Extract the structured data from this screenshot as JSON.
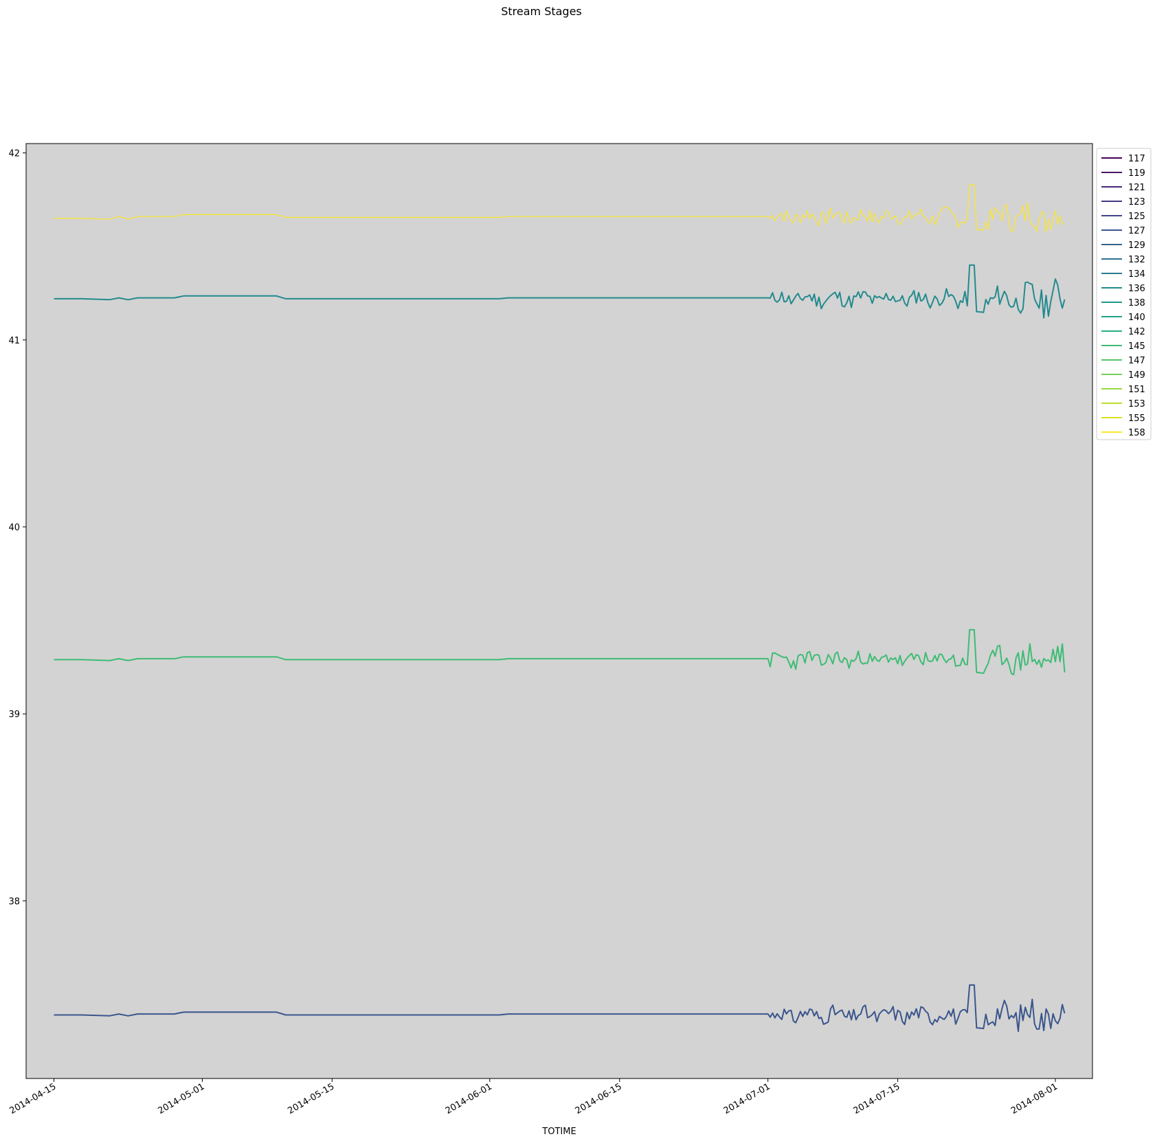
{
  "chart_data": {
    "type": "line",
    "title": "Stream Stages",
    "xlabel": "TOTIME",
    "ylabel": "",
    "x_type": "date",
    "xlim": [
      "2014-04-12",
      "2014-08-05"
    ],
    "ylim": [
      37.05,
      42.05
    ],
    "x_ticks": [
      "2014-04-15",
      "2014-05-01",
      "2014-05-15",
      "2014-06-01",
      "2014-06-15",
      "2014-07-01",
      "2014-07-15",
      "2014-08-01"
    ],
    "y_ticks": [
      38,
      39,
      40,
      41,
      42
    ],
    "background": "#d3d3d3",
    "grid": false,
    "legend": {
      "placement": "outside-top-right",
      "entries": [
        {
          "name": "117",
          "color": "#440154"
        },
        {
          "name": "119",
          "color": "#481467"
        },
        {
          "name": "121",
          "color": "#482576"
        },
        {
          "name": "123",
          "color": "#453781"
        },
        {
          "name": "125",
          "color": "#404688"
        },
        {
          "name": "127",
          "color": "#39558c"
        },
        {
          "name": "129",
          "color": "#33638d"
        },
        {
          "name": "132",
          "color": "#2d718e"
        },
        {
          "name": "134",
          "color": "#287d8e"
        },
        {
          "name": "136",
          "color": "#238a8d"
        },
        {
          "name": "138",
          "color": "#1f968b"
        },
        {
          "name": "140",
          "color": "#20a386"
        },
        {
          "name": "142",
          "color": "#29af7f"
        },
        {
          "name": "145",
          "color": "#3dbc74"
        },
        {
          "name": "147",
          "color": "#56c667"
        },
        {
          "name": "149",
          "color": "#75d054"
        },
        {
          "name": "151",
          "color": "#95d840"
        },
        {
          "name": "153",
          "color": "#bade28"
        },
        {
          "name": "155",
          "color": "#dde318"
        },
        {
          "name": "158",
          "color": "#fde725"
        }
      ]
    },
    "series": [
      {
        "name": "158",
        "color": "#fde725",
        "width": 1.2,
        "points": [
          [
            "2014-04-15",
            41.65
          ],
          [
            "2014-04-18",
            41.65
          ],
          [
            "2014-04-21",
            41.645
          ],
          [
            "2014-04-22",
            41.66
          ],
          [
            "2014-04-23",
            41.645
          ],
          [
            "2014-04-24",
            41.66
          ],
          [
            "2014-04-28",
            41.66
          ],
          [
            "2014-04-29",
            41.67
          ],
          [
            "2014-05-06",
            41.67
          ],
          [
            "2014-05-09",
            41.67
          ],
          [
            "2014-05-10",
            41.655
          ],
          [
            "2014-06-02",
            41.655
          ],
          [
            "2014-06-03",
            41.66
          ],
          [
            "2014-07-01",
            41.66
          ]
        ],
        "noise": {
          "start": "2014-07-01",
          "end": "2014-08-02",
          "base": 41.66,
          "amp": 0.04,
          "spike_date": "2014-07-23",
          "spike_value": 41.83,
          "end_amp": 0.09,
          "seed": 7
        }
      },
      {
        "name": "136",
        "color": "#238a8d",
        "width": 2,
        "points": [
          [
            "2014-04-15",
            41.22
          ],
          [
            "2014-04-18",
            41.22
          ],
          [
            "2014-04-21",
            41.215
          ],
          [
            "2014-04-22",
            41.225
          ],
          [
            "2014-04-23",
            41.215
          ],
          [
            "2014-04-24",
            41.225
          ],
          [
            "2014-04-28",
            41.225
          ],
          [
            "2014-04-29",
            41.235
          ],
          [
            "2014-05-06",
            41.235
          ],
          [
            "2014-05-09",
            41.235
          ],
          [
            "2014-05-10",
            41.22
          ],
          [
            "2014-06-02",
            41.22
          ],
          [
            "2014-06-03",
            41.225
          ],
          [
            "2014-07-01",
            41.225
          ]
        ],
        "noise": {
          "start": "2014-07-01",
          "end": "2014-08-02",
          "base": 41.22,
          "amp": 0.04,
          "spike_date": "2014-07-23",
          "spike_value": 41.4,
          "end_amp": 0.09,
          "seed": 11
        }
      },
      {
        "name": "145",
        "color": "#3dbc74",
        "width": 2,
        "points": [
          [
            "2014-04-15",
            39.29
          ],
          [
            "2014-04-18",
            39.29
          ],
          [
            "2014-04-21",
            39.285
          ],
          [
            "2014-04-22",
            39.295
          ],
          [
            "2014-04-23",
            39.285
          ],
          [
            "2014-04-24",
            39.295
          ],
          [
            "2014-04-28",
            39.295
          ],
          [
            "2014-04-29",
            39.305
          ],
          [
            "2014-05-06",
            39.305
          ],
          [
            "2014-05-09",
            39.305
          ],
          [
            "2014-05-10",
            39.29
          ],
          [
            "2014-06-02",
            39.29
          ],
          [
            "2014-06-03",
            39.295
          ],
          [
            "2014-07-01",
            39.295
          ]
        ],
        "noise": {
          "start": "2014-07-01",
          "end": "2014-08-02",
          "base": 39.29,
          "amp": 0.04,
          "spike_date": "2014-07-23",
          "spike_value": 39.45,
          "end_amp": 0.09,
          "seed": 23
        }
      },
      {
        "name": "127",
        "color": "#39558c",
        "width": 2,
        "points": [
          [
            "2014-04-15",
            37.39
          ],
          [
            "2014-04-18",
            37.39
          ],
          [
            "2014-04-21",
            37.385
          ],
          [
            "2014-04-22",
            37.395
          ],
          [
            "2014-04-23",
            37.385
          ],
          [
            "2014-04-24",
            37.395
          ],
          [
            "2014-04-28",
            37.395
          ],
          [
            "2014-04-29",
            37.405
          ],
          [
            "2014-05-06",
            37.405
          ],
          [
            "2014-05-09",
            37.405
          ],
          [
            "2014-05-10",
            37.39
          ],
          [
            "2014-06-02",
            37.39
          ],
          [
            "2014-06-03",
            37.395
          ],
          [
            "2014-07-01",
            37.395
          ]
        ],
        "noise": {
          "start": "2014-07-01",
          "end": "2014-08-02",
          "base": 37.39,
          "amp": 0.04,
          "spike_date": "2014-07-23",
          "spike_value": 37.55,
          "end_amp": 0.09,
          "seed": 31
        }
      }
    ]
  }
}
